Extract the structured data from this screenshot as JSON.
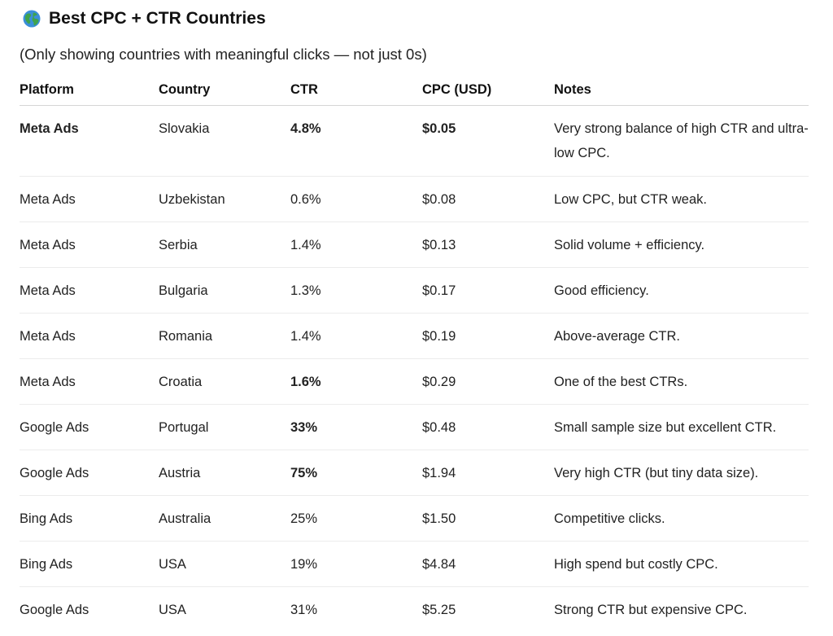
{
  "heading": {
    "icon": "globe-icon",
    "title": "Best CPC + CTR Countries"
  },
  "subtitle": "(Only showing countries with meaningful clicks — not just 0s)",
  "table": {
    "headers": {
      "platform": "Platform",
      "country": "Country",
      "ctr": "CTR",
      "cpc": "CPC (USD)",
      "notes": "Notes"
    },
    "rows": [
      {
        "platform": "Meta Ads",
        "country": "Slovakia",
        "ctr": "4.8%",
        "cpc": "$0.05",
        "notes": "Very strong balance of high CTR and ultra-low CPC.",
        "platform_bold": true,
        "ctr_bold": true,
        "cpc_bold": true
      },
      {
        "platform": "Meta Ads",
        "country": "Uzbekistan",
        "ctr": "0.6%",
        "cpc": "$0.08",
        "notes": "Low CPC, but CTR weak."
      },
      {
        "platform": "Meta Ads",
        "country": "Serbia",
        "ctr": "1.4%",
        "cpc": "$0.13",
        "notes": "Solid volume + efficiency."
      },
      {
        "platform": "Meta Ads",
        "country": "Bulgaria",
        "ctr": "1.3%",
        "cpc": "$0.17",
        "notes": "Good efficiency."
      },
      {
        "platform": "Meta Ads",
        "country": "Romania",
        "ctr": "1.4%",
        "cpc": "$0.19",
        "notes": "Above-average CTR."
      },
      {
        "platform": "Meta Ads",
        "country": "Croatia",
        "ctr": "1.6%",
        "cpc": "$0.29",
        "notes": "One of the best CTRs.",
        "ctr_bold": true
      },
      {
        "platform": "Google Ads",
        "country": "Portugal",
        "ctr": "33%",
        "cpc": "$0.48",
        "notes": "Small sample size but excellent CTR.",
        "ctr_bold": true
      },
      {
        "platform": "Google Ads",
        "country": "Austria",
        "ctr": "75%",
        "cpc": "$1.94",
        "notes": "Very high CTR (but tiny data size).",
        "ctr_bold": true
      },
      {
        "platform": "Bing Ads",
        "country": "Australia",
        "ctr": "25%",
        "cpc": "$1.50",
        "notes": "Competitive clicks."
      },
      {
        "platform": "Bing Ads",
        "country": "USA",
        "ctr": "19%",
        "cpc": "$4.84",
        "notes": "High spend but costly CPC."
      },
      {
        "platform": "Google Ads",
        "country": "USA",
        "ctr": "31%",
        "cpc": "$5.25",
        "notes": "Strong CTR but expensive CPC."
      }
    ]
  },
  "colors": {
    "text": "#222222",
    "heading": "#111111",
    "divider": "#ececec",
    "header_divider": "#d6d6d6",
    "globe_ocean": "#3a8fd9",
    "globe_land": "#3fa34d"
  }
}
